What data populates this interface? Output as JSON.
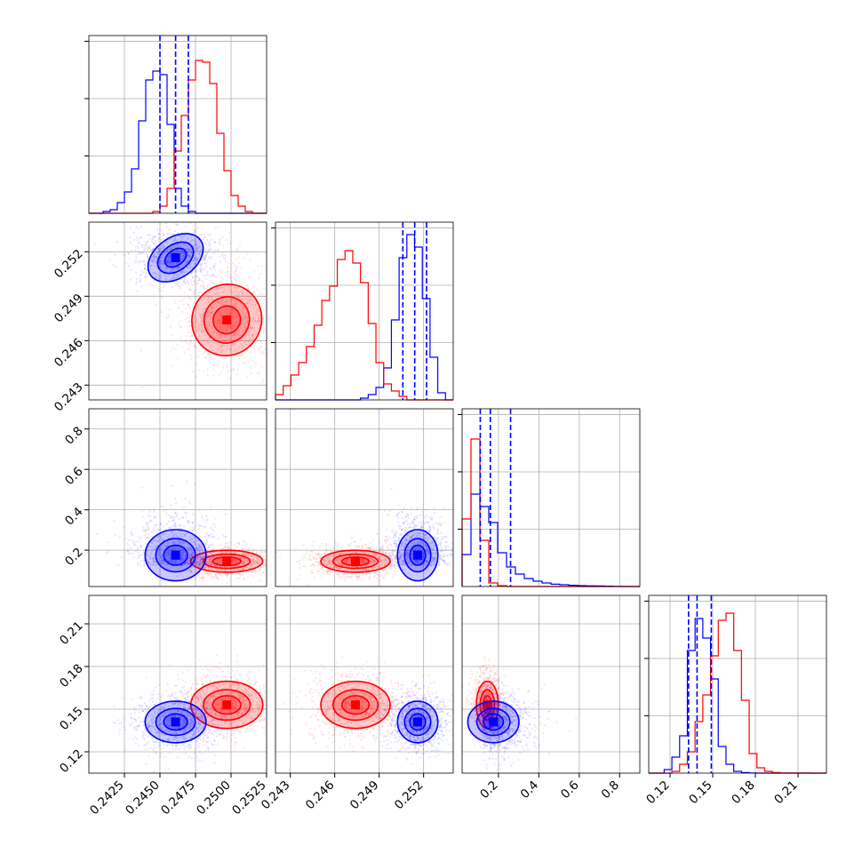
{
  "chart_data": {
    "type": "corner",
    "colors": {
      "blue": "#0000ff",
      "red": "#ff0000"
    },
    "series": [
      {
        "color": "blue",
        "mean": [
          0.2461,
          0.2516,
          0.175,
          0.141
        ],
        "std": [
          0.0011,
          0.0007,
          0.065,
          0.0075
        ],
        "quantile_lines": [
          [
            0.245,
            0.2461,
            0.247
          ],
          [
            0.2506,
            0.2514,
            0.2522
          ],
          [
            0.11,
            0.16,
            0.26
          ],
          [
            0.133,
            0.139,
            0.149
          ]
        ]
      },
      {
        "color": "red",
        "mean": [
          0.2497,
          0.2474,
          0.145,
          0.153
        ],
        "std": [
          0.0013,
          0.0012,
          0.028,
          0.0085
        ]
      }
    ],
    "params": [
      {
        "range": [
          0.24,
          0.2525
        ],
        "ticks": [
          "0.2425",
          "0.2450",
          "0.2475",
          "0.2500",
          "0.2525"
        ],
        "tick_values": [
          0.2425,
          0.245,
          0.2475,
          0.25,
          0.2525
        ]
      },
      {
        "range": [
          0.242,
          0.254
        ],
        "ticks": [
          "0.243",
          "0.246",
          "0.249",
          "0.252"
        ],
        "tick_values": [
          0.243,
          0.246,
          0.249,
          0.252
        ]
      },
      {
        "range": [
          0.02,
          0.9
        ],
        "ticks": [
          "0.2",
          "0.4",
          "0.6",
          "0.8"
        ],
        "tick_values": [
          0.2,
          0.4,
          0.6,
          0.8
        ]
      },
      {
        "range": [
          0.105,
          0.23
        ],
        "ticks": [
          "0.12",
          "0.15",
          "0.18",
          "0.21"
        ],
        "tick_values": [
          0.12,
          0.15,
          0.18,
          0.21
        ]
      }
    ],
    "histograms": [
      {
        "blue": [
          0,
          0,
          0.01,
          0.02,
          0.06,
          0.12,
          0.25,
          0.52,
          0.75,
          0.8,
          0.78,
          0.5,
          0.14,
          0.04,
          0.01,
          0,
          0,
          0,
          0,
          0,
          0,
          0,
          0,
          0,
          0
        ],
        "red": [
          0,
          0,
          0,
          0,
          0,
          0,
          0,
          0,
          0,
          0.01,
          0.04,
          0.14,
          0.35,
          0.55,
          0.75,
          0.86,
          0.85,
          0.73,
          0.45,
          0.24,
          0.1,
          0.04,
          0.01,
          0,
          0
        ]
      },
      {
        "blue": [
          0,
          0,
          0,
          0,
          0,
          0,
          0,
          0,
          0,
          0,
          0,
          0.01,
          0.03,
          0.07,
          0.18,
          0.45,
          0.8,
          0.93,
          0.86,
          0.57,
          0.24,
          0.04,
          0
        ],
        "red": [
          0.03,
          0.08,
          0.14,
          0.21,
          0.3,
          0.42,
          0.56,
          0.64,
          0.79,
          0.84,
          0.77,
          0.66,
          0.43,
          0.21,
          0.09,
          0.05,
          0.02,
          0,
          0,
          0,
          0,
          0,
          0
        ]
      },
      {
        "blue": [
          0.18,
          0.52,
          0.45,
          0.36,
          0.19,
          0.11,
          0.07,
          0.045,
          0.03,
          0.02,
          0.013,
          0.01,
          0.007,
          0.005,
          0.004,
          0.003,
          0.002,
          0.001,
          0,
          0
        ],
        "red": [
          0.38,
          0.83,
          0.26,
          0.02,
          0.005,
          0,
          0,
          0,
          0,
          0,
          0,
          0,
          0,
          0,
          0,
          0,
          0,
          0,
          0,
          0
        ]
      },
      {
        "blue": [
          0,
          0,
          0.02,
          0.09,
          0.21,
          0.69,
          0.87,
          0.76,
          0.53,
          0.15,
          0.05,
          0.01,
          0.003,
          0.001,
          0,
          0,
          0,
          0,
          0,
          0,
          0,
          0,
          0
        ],
        "red": [
          0,
          0,
          0,
          0.01,
          0.05,
          0.12,
          0.29,
          0.44,
          0.66,
          0.86,
          0.9,
          0.69,
          0.41,
          0.11,
          0.03,
          0.01,
          0.003,
          0.001,
          0.001,
          0.001,
          0.001,
          0,
          0
        ]
      }
    ]
  }
}
